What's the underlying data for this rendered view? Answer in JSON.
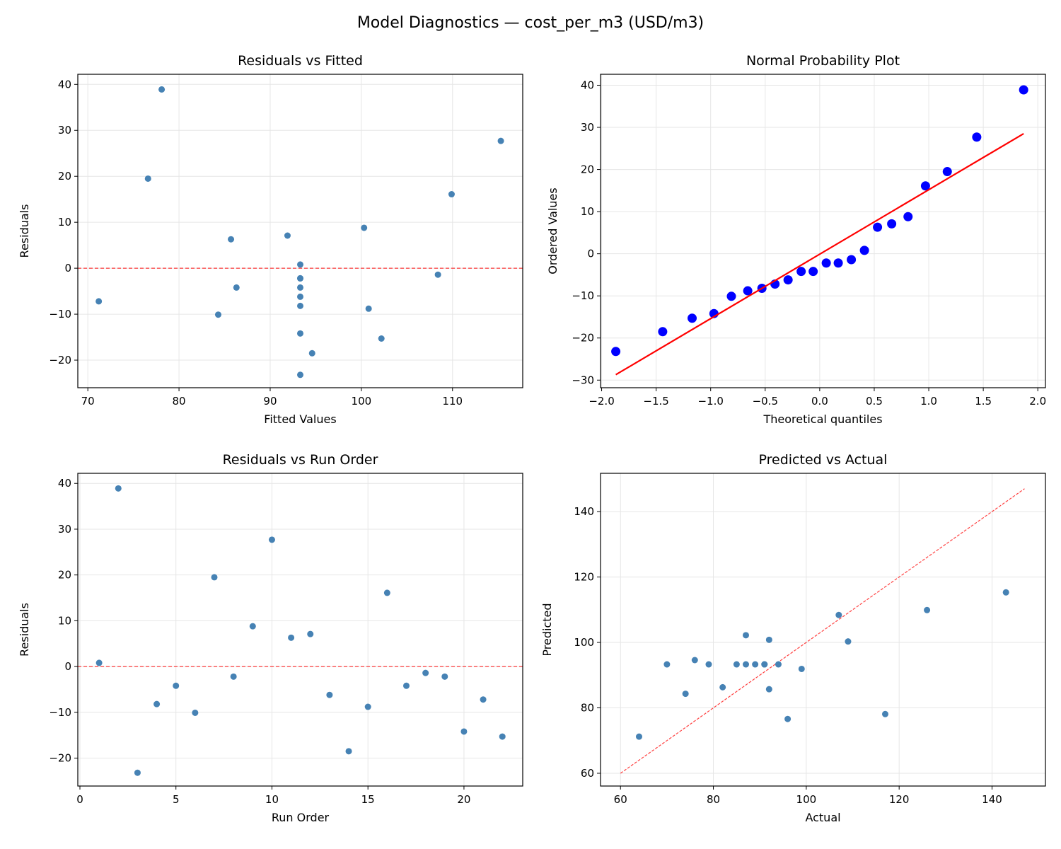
{
  "figure": {
    "title": "Model Diagnostics — cost_per_m3 (USD/m3)"
  },
  "chart_data": [
    {
      "type": "scatter",
      "title": "Residuals vs Fitted",
      "xlabel": "Fitted Values",
      "ylabel": "Residuals",
      "xlim": [
        68.9,
        117.7
      ],
      "ylim": [
        -26.0,
        42.2
      ],
      "xticks": [
        70,
        80,
        90,
        100,
        110
      ],
      "yticks": [
        -20,
        -10,
        0,
        10,
        20,
        30,
        40
      ],
      "grid": true,
      "color": "#4682b4",
      "reference_line": {
        "y": 0,
        "style": "dashed",
        "color": "#ff0000"
      },
      "x": [
        93.3,
        78.1,
        93.3,
        93.3,
        86.3,
        84.3,
        76.6,
        93.3,
        100.3,
        115.3,
        85.7,
        91.9,
        93.3,
        94.6,
        100.8,
        109.9,
        93.3,
        108.4,
        93.3,
        93.3,
        71.2,
        102.2
      ],
      "y": [
        0.8,
        38.9,
        -23.2,
        -8.2,
        -4.2,
        -10.1,
        19.5,
        -2.2,
        8.8,
        27.7,
        6.3,
        7.1,
        -6.2,
        -18.5,
        -8.8,
        16.1,
        -4.2,
        -1.4,
        -2.2,
        -14.2,
        -7.2,
        -15.3
      ]
    },
    {
      "type": "scatter",
      "title": "Normal Probability Plot",
      "xlabel": "Theoretical quantiles",
      "ylabel": "Ordered Values",
      "xlim": [
        -2.01,
        2.07
      ],
      "ylim": [
        -31.8,
        42.6
      ],
      "xticks": [
        -2.0,
        -1.5,
        -1.0,
        -0.5,
        0.0,
        0.5,
        1.0,
        1.5,
        2.0
      ],
      "ytick_labels_decimals": 1,
      "yticks": [
        -30,
        -20,
        -10,
        0,
        10,
        20,
        30,
        40
      ],
      "grid": true,
      "color": "#0000ff",
      "fit_line": {
        "slope": 15.3,
        "intercept": -0.1,
        "color": "#ff0000"
      },
      "x": [
        -1.87,
        -1.44,
        -1.17,
        -0.97,
        -0.81,
        -0.66,
        -0.53,
        -0.41,
        -0.29,
        -0.17,
        -0.06,
        0.06,
        0.17,
        0.29,
        0.41,
        0.53,
        0.66,
        0.81,
        0.97,
        1.17,
        1.44,
        1.87
      ],
      "y": [
        -23.2,
        -18.5,
        -15.3,
        -14.2,
        -10.1,
        -8.8,
        -8.2,
        -7.2,
        -6.2,
        -4.2,
        -4.2,
        -2.2,
        -2.2,
        -1.4,
        0.8,
        6.3,
        7.1,
        8.8,
        16.1,
        19.5,
        27.7,
        38.9
      ]
    },
    {
      "type": "scatter",
      "title": "Residuals vs Run Order",
      "xlabel": "Run Order",
      "ylabel": "Residuals",
      "xlim": [
        -0.11,
        23.06
      ],
      "ylim": [
        -26.1,
        42.2
      ],
      "xticks": [
        0,
        5,
        10,
        15,
        20
      ],
      "yticks": [
        -20,
        -10,
        0,
        10,
        20,
        30,
        40
      ],
      "grid": true,
      "color": "#4682b4",
      "reference_line": {
        "y": 0,
        "style": "dashed",
        "color": "#ff0000"
      },
      "x": [
        1,
        2,
        3,
        4,
        5,
        6,
        7,
        8,
        9,
        10,
        11,
        12,
        13,
        14,
        15,
        16,
        17,
        18,
        19,
        20,
        21,
        22
      ],
      "y": [
        0.8,
        38.9,
        -23.2,
        -8.2,
        -4.2,
        -10.1,
        19.5,
        -2.2,
        8.8,
        27.7,
        6.3,
        7.1,
        -6.2,
        -18.5,
        -8.8,
        16.1,
        -4.2,
        -1.4,
        -2.2,
        -14.2,
        -7.2,
        -15.3
      ]
    },
    {
      "type": "scatter",
      "title": "Predicted vs Actual",
      "xlabel": "Actual",
      "ylabel": "Predicted",
      "xlim": [
        55.7,
        151.5
      ],
      "ylim": [
        56.1,
        151.7
      ],
      "xticks": [
        60,
        80,
        100,
        120,
        140
      ],
      "yticks": [
        60,
        80,
        100,
        120,
        140
      ],
      "grid": true,
      "color": "#4682b4",
      "identity_line": {
        "from": 60,
        "to": 147,
        "style": "dashed",
        "color": "#ff0000"
      },
      "x": [
        94,
        117,
        70,
        85,
        82,
        74,
        96,
        91,
        109,
        143,
        92,
        99,
        87,
        76,
        92,
        126,
        89,
        107,
        91,
        79,
        64,
        87
      ],
      "y": [
        93.3,
        78.1,
        93.3,
        93.3,
        86.3,
        84.3,
        76.6,
        93.3,
        100.3,
        115.3,
        85.7,
        91.9,
        93.3,
        94.6,
        100.8,
        109.9,
        93.3,
        108.4,
        93.3,
        93.3,
        71.2,
        102.2
      ]
    }
  ]
}
